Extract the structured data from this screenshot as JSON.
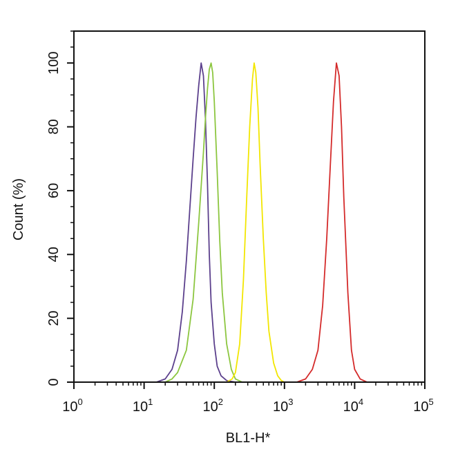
{
  "chart_data": {
    "type": "line",
    "title": "",
    "xlabel": "BL1-H*",
    "ylabel": "Count  (%)",
    "xscale": "log",
    "xlim": [
      1,
      100000
    ],
    "ylim": [
      0,
      110
    ],
    "grid": false,
    "legend": "none",
    "x_ticks": [
      {
        "base": "10",
        "exp": "0"
      },
      {
        "base": "10",
        "exp": "1"
      },
      {
        "base": "10",
        "exp": "2"
      },
      {
        "base": "10",
        "exp": "3"
      },
      {
        "base": "10",
        "exp": "4"
      },
      {
        "base": "10",
        "exp": "5"
      }
    ],
    "y_ticks": [
      "0",
      "20",
      "40",
      "60",
      "80",
      "100"
    ],
    "series": [
      {
        "color": "#5b3f8c",
        "x": [
          15,
          20,
          25,
          30,
          35,
          40,
          45,
          50,
          55,
          60,
          65,
          70,
          75,
          80,
          85,
          90,
          100,
          110,
          125,
          150,
          200
        ],
        "y": [
          0,
          1,
          4,
          10,
          22,
          38,
          55,
          70,
          83,
          93,
          100,
          96,
          82,
          62,
          40,
          25,
          12,
          5,
          2,
          0.5,
          0
        ]
      },
      {
        "color": "#8cc63f",
        "x": [
          20,
          25,
          30,
          40,
          50,
          60,
          70,
          75,
          80,
          85,
          90,
          95,
          100,
          110,
          120,
          130,
          150,
          175,
          200,
          250
        ],
        "y": [
          0,
          1,
          3,
          10,
          26,
          50,
          72,
          83,
          92,
          98,
          100,
          97,
          88,
          66,
          44,
          28,
          12,
          4,
          1,
          0
        ]
      },
      {
        "color": "#f2e600",
        "x": [
          150,
          180,
          200,
          230,
          260,
          290,
          320,
          350,
          370,
          390,
          420,
          450,
          500,
          550,
          600,
          700,
          800,
          900,
          1000
        ],
        "y": [
          0,
          1,
          3,
          12,
          32,
          58,
          80,
          95,
          100,
          97,
          86,
          68,
          45,
          28,
          16,
          6,
          2,
          0.5,
          0
        ]
      },
      {
        "color": "#d42a2a",
        "x": [
          1500,
          2000,
          2500,
          3000,
          3500,
          4000,
          4500,
          5000,
          5500,
          6000,
          6500,
          7000,
          8000,
          9000,
          10000,
          12000,
          15000
        ],
        "y": [
          0,
          1,
          4,
          10,
          24,
          45,
          68,
          88,
          100,
          96,
          80,
          58,
          28,
          10,
          4,
          1,
          0
        ]
      }
    ]
  }
}
